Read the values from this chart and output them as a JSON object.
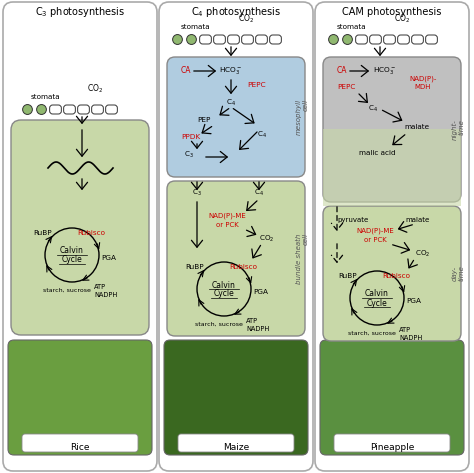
{
  "bg_color": "#ffffff",
  "panel_bg": "#c8d8a8",
  "mesophyll_bg": "#b0cce0",
  "cam_night_bg": "#c0c0c0",
  "border_color": "#888888",
  "red_color": "#cc0000",
  "stomata_green": "#90b870",
  "stomata_outline": "#333333",
  "panel_titles": [
    "C$_3$ photosynthesis",
    "C$_4$ photosynthesis",
    "CAM photosynthesis"
  ],
  "plant_labels": [
    "Rice",
    "Maize",
    "Pineapple"
  ],
  "plant_colors": [
    "#6a9e40",
    "#3a6820",
    "#5a9040"
  ]
}
